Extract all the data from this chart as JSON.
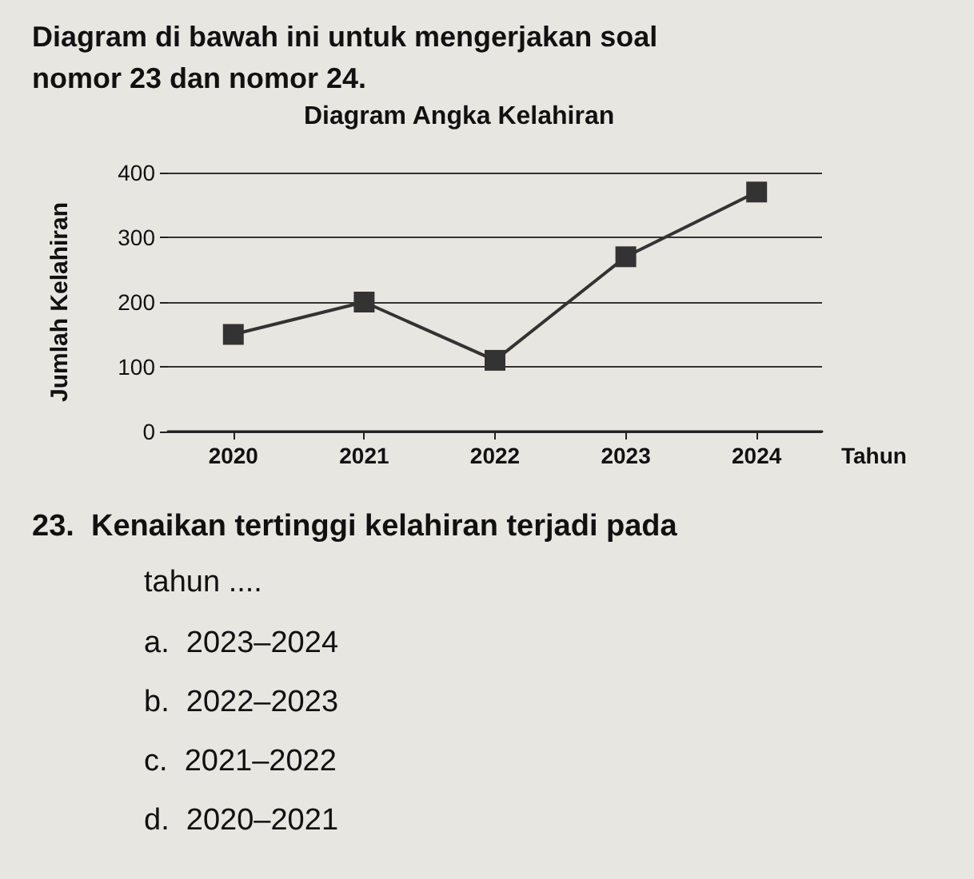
{
  "chart_data": {
    "type": "line",
    "title": "Diagram Angka Kelahiran",
    "xlabel": "Tahun",
    "ylabel": "Jumlah Kelahiran",
    "categories": [
      "2020",
      "2021",
      "2022",
      "2023",
      "2024"
    ],
    "series": [
      {
        "color": "#333333",
        "values": [
          150,
          200,
          110,
          270,
          370
        ]
      }
    ],
    "ylim": [
      0,
      400
    ],
    "yticks": [
      0,
      100,
      200,
      300,
      400
    ],
    "grid": "y",
    "marker": "square",
    "line_style": "solid",
    "annotations": [
      "Diagram di bawah ini untuk mengerjakan soal nomor 23 dan nomor 24.",
      "23.  Kenaikan tertinggi kelahiran terjadi pada",
      "tahun ....",
      "a.  2023–2024",
      "b.  2022–2023",
      "c.  2021–2022",
      "d.  2020–2021"
    ]
  }
}
